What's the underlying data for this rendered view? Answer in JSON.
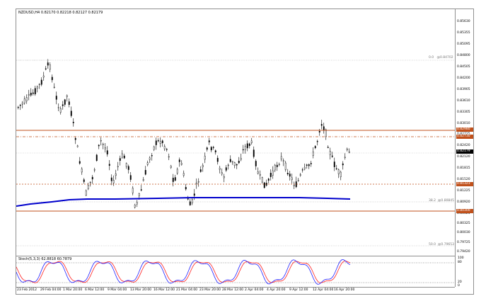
{
  "chart": {
    "symbol_info": "NZDUSD,H4  0.82170 0.82218 0.82127 0.82179",
    "oscillator_info": "Stoch(5,3,3) 62.8818 60.7879",
    "colors": {
      "bull": "#000000",
      "bear": "#000000",
      "level_line": "#c0501b",
      "moving_average": "#0000cc",
      "stoch_main": "#2020ff",
      "stoch_signal": "#ff2020",
      "grid": "#909090"
    },
    "price_scale": [
      "0.85630",
      "0.85355",
      "0.85095",
      "0.84800",
      "0.84505",
      "0.84200",
      "0.83905",
      "0.83610",
      "0.83305",
      "0.83010",
      "0.82725",
      "0.82420",
      "0.82120",
      "0.81815",
      "0.81520",
      "0.81225",
      "0.80920",
      "0.80625",
      "0.80325",
      "0.80030",
      "0.79725",
      "0.79420"
    ],
    "current_price": "0.82179",
    "level_boxes": [
      {
        "label": "0.82980",
        "color": "#c0501b"
      },
      {
        "label": "0.82730",
        "color": "#c0501b"
      },
      {
        "label": "0.81323",
        "color": "#c0501b"
      },
      {
        "label": "0.80300",
        "color": "#c0501b"
      }
    ],
    "fib_labels": [
      {
        "label": "0.0",
        "price": "@0.84702"
      },
      {
        "label": "38.2",
        "price": "@0.80845"
      },
      {
        "label": "50.0",
        "price": "@0.79653"
      }
    ],
    "osc_scale": [
      "100",
      "80",
      "20",
      "0"
    ],
    "time_scale": [
      "23 Feb 2012",
      "29 Feb 04:00",
      "1 Mar 20:00",
      "6 Mar 12:00",
      "9 Mar 04:00",
      "13 Mar 20:00",
      "16 Mar 12:00",
      "21 Mar 04:00",
      "23 Mar 20:00",
      "28 Mar 12:00",
      "2 Apr 04:00",
      "4 Apr 20:00",
      "9 Apr 12:00",
      "12 Apr 04:00",
      "16 Apr 20:00"
    ]
  }
}
